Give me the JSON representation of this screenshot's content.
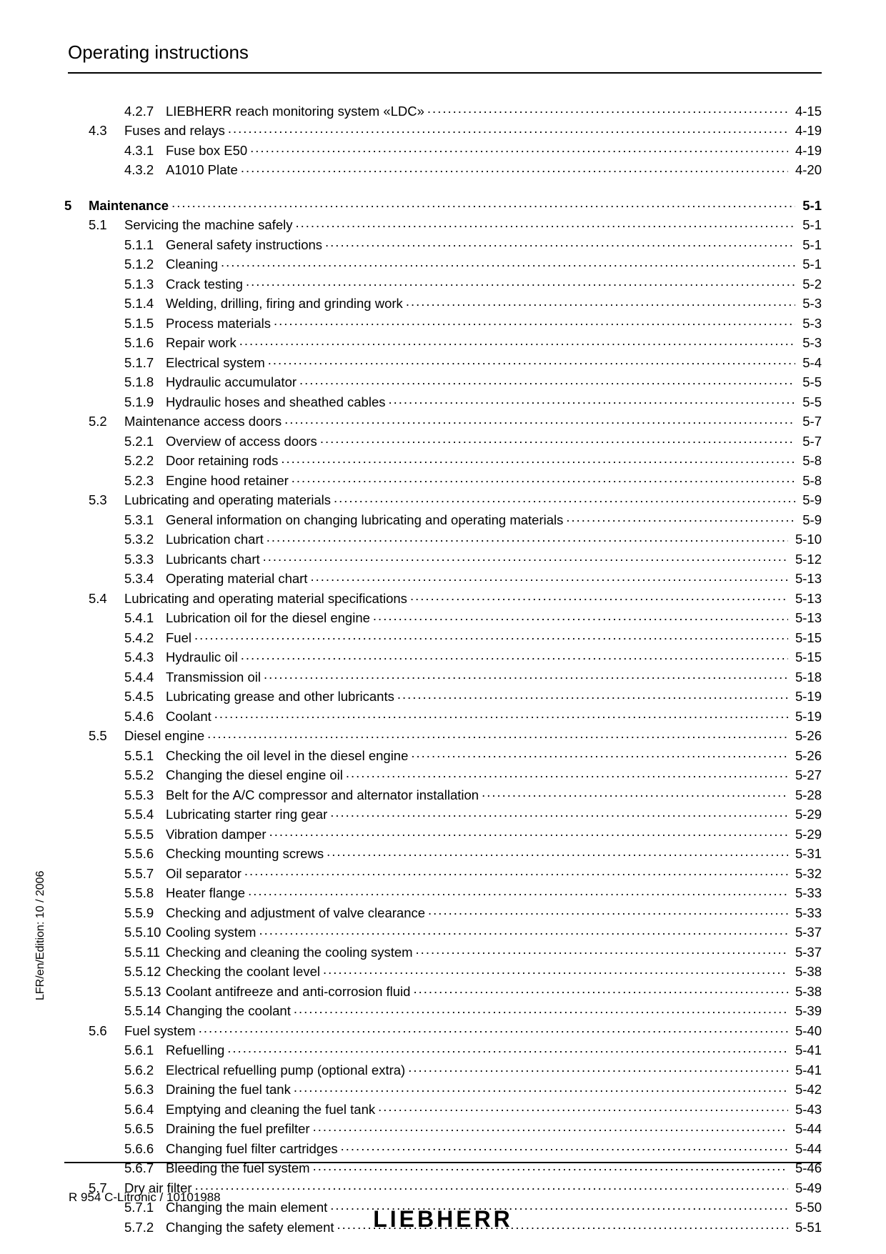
{
  "header": "Operating instructions",
  "side_text": "LFR/en/Edition: 10 / 2006",
  "footer_left": "R 954 C-Litronic / 10101988",
  "footer_logo": "LIEBHERR",
  "colors": {
    "text": "#000000",
    "bg": "#ffffff",
    "rule": "#000000"
  },
  "fonts": {
    "body_pt": 18.5,
    "header_pt": 26,
    "footer_pt": 17,
    "logo_pt": 32
  },
  "toc": [
    {
      "level": "sub",
      "num": "4.2.7",
      "title": "LIEBHERR reach monitoring system «LDC»",
      "page": "4-15"
    },
    {
      "level": "section",
      "num": "4.3",
      "title": "Fuses and relays",
      "page": "4-19"
    },
    {
      "level": "sub",
      "num": "4.3.1",
      "title": "Fuse box E50",
      "page": "4-19"
    },
    {
      "level": "sub",
      "num": "4.3.2",
      "title": "A1010 Plate",
      "page": "4-20"
    },
    {
      "level": "gap"
    },
    {
      "level": "chapter",
      "num": "5",
      "title": "Maintenance",
      "page": "5-1",
      "bold": true
    },
    {
      "level": "section",
      "num": "5.1",
      "title": "Servicing the machine safely",
      "page": "5-1"
    },
    {
      "level": "sub",
      "num": "5.1.1",
      "title": "General safety instructions",
      "page": "5-1"
    },
    {
      "level": "sub",
      "num": "5.1.2",
      "title": "Cleaning",
      "page": "5-1"
    },
    {
      "level": "sub",
      "num": "5.1.3",
      "title": "Crack testing",
      "page": "5-2"
    },
    {
      "level": "sub",
      "num": "5.1.4",
      "title": "Welding, drilling, firing and grinding work",
      "page": "5-3"
    },
    {
      "level": "sub",
      "num": "5.1.5",
      "title": "Process materials",
      "page": "5-3"
    },
    {
      "level": "sub",
      "num": "5.1.6",
      "title": "Repair work",
      "page": "5-3"
    },
    {
      "level": "sub",
      "num": "5.1.7",
      "title": "Electrical system",
      "page": "5-4"
    },
    {
      "level": "sub",
      "num": "5.1.8",
      "title": "Hydraulic accumulator",
      "page": "5-5"
    },
    {
      "level": "sub",
      "num": "5.1.9",
      "title": "Hydraulic hoses and sheathed cables",
      "page": "5-5"
    },
    {
      "level": "section",
      "num": "5.2",
      "title": "Maintenance access doors",
      "page": "5-7"
    },
    {
      "level": "sub",
      "num": "5.2.1",
      "title": "Overview of access doors",
      "page": "5-7"
    },
    {
      "level": "sub",
      "num": "5.2.2",
      "title": "Door retaining rods",
      "page": "5-8"
    },
    {
      "level": "sub",
      "num": "5.2.3",
      "title": "Engine hood retainer",
      "page": "5-8"
    },
    {
      "level": "section",
      "num": "5.3",
      "title": "Lubricating and operating materials",
      "page": "5-9"
    },
    {
      "level": "sub",
      "num": "5.3.1",
      "title": "General information on changing lubricating and operating materials",
      "page": "5-9"
    },
    {
      "level": "sub",
      "num": "5.3.2",
      "title": "Lubrication chart",
      "page": "5-10"
    },
    {
      "level": "sub",
      "num": "5.3.3",
      "title": "Lubricants chart",
      "page": "5-12"
    },
    {
      "level": "sub",
      "num": "5.3.4",
      "title": "Operating material chart",
      "page": "5-13"
    },
    {
      "level": "section",
      "num": "5.4",
      "title": "Lubricating and operating material specifications",
      "page": "5-13"
    },
    {
      "level": "sub",
      "num": "5.4.1",
      "title": "Lubrication oil for the diesel engine",
      "page": "5-13"
    },
    {
      "level": "sub",
      "num": "5.4.2",
      "title": "Fuel",
      "page": "5-15"
    },
    {
      "level": "sub",
      "num": "5.4.3",
      "title": "Hydraulic oil",
      "page": "5-15"
    },
    {
      "level": "sub",
      "num": "5.4.4",
      "title": "Transmission oil",
      "page": "5-18"
    },
    {
      "level": "sub",
      "num": "5.4.5",
      "title": "Lubricating grease and other lubricants",
      "page": "5-19"
    },
    {
      "level": "sub",
      "num": "5.4.6",
      "title": "Coolant",
      "page": "5-19"
    },
    {
      "level": "section",
      "num": "5.5",
      "title": "Diesel engine",
      "page": "5-26"
    },
    {
      "level": "sub",
      "num": "5.5.1",
      "title": "Checking the oil level in the diesel engine",
      "page": "5-26"
    },
    {
      "level": "sub",
      "num": "5.5.2",
      "title": "Changing the diesel engine oil",
      "page": "5-27"
    },
    {
      "level": "sub",
      "num": "5.5.3",
      "title": "Belt for the A/C compressor and alternator installation",
      "page": "5-28"
    },
    {
      "level": "sub",
      "num": "5.5.4",
      "title": "Lubricating starter ring gear",
      "page": "5-29"
    },
    {
      "level": "sub",
      "num": "5.5.5",
      "title": "Vibration damper",
      "page": "5-29"
    },
    {
      "level": "sub",
      "num": "5.5.6",
      "title": "Checking mounting screws",
      "page": "5-31"
    },
    {
      "level": "sub",
      "num": "5.5.7",
      "title": "Oil separator",
      "page": "5-32"
    },
    {
      "level": "sub",
      "num": "5.5.8",
      "title": "Heater flange",
      "page": "5-33"
    },
    {
      "level": "sub",
      "num": "5.5.9",
      "title": "Checking and adjustment of valve clearance",
      "page": "5-33"
    },
    {
      "level": "sub",
      "num": "5.5.10",
      "title": "Cooling system",
      "page": "5-37"
    },
    {
      "level": "sub",
      "num": "5.5.11",
      "title": "Checking and cleaning the cooling system",
      "page": "5-37"
    },
    {
      "level": "sub",
      "num": "5.5.12",
      "title": "Checking the coolant level",
      "page": "5-38"
    },
    {
      "level": "sub",
      "num": "5.5.13",
      "title": "Coolant antifreeze and anti-corrosion fluid",
      "page": "5-38"
    },
    {
      "level": "sub",
      "num": "5.5.14",
      "title": "Changing the coolant",
      "page": "5-39"
    },
    {
      "level": "section",
      "num": "5.6",
      "title": "Fuel system",
      "page": "5-40"
    },
    {
      "level": "sub",
      "num": "5.6.1",
      "title": "Refuelling",
      "page": "5-41"
    },
    {
      "level": "sub",
      "num": "5.6.2",
      "title": "Electrical refuelling pump (optional extra)",
      "page": "5-41"
    },
    {
      "level": "sub",
      "num": "5.6.3",
      "title": "Draining the fuel tank",
      "page": "5-42"
    },
    {
      "level": "sub",
      "num": "5.6.4",
      "title": "Emptying and cleaning the fuel tank",
      "page": "5-43"
    },
    {
      "level": "sub",
      "num": "5.6.5",
      "title": "Draining the fuel prefilter",
      "page": "5-44"
    },
    {
      "level": "sub",
      "num": "5.6.6",
      "title": "Changing fuel filter cartridges",
      "page": "5-44"
    },
    {
      "level": "sub",
      "num": "5.6.7",
      "title": "Bleeding the fuel system",
      "page": "5-46"
    },
    {
      "level": "section",
      "num": "5.7",
      "title": "Dry air filter",
      "page": "5-49"
    },
    {
      "level": "sub",
      "num": "5.7.1",
      "title": "Changing the main element",
      "page": "5-50"
    },
    {
      "level": "sub",
      "num": "5.7.2",
      "title": "Changing the safety element",
      "page": "5-51"
    }
  ]
}
